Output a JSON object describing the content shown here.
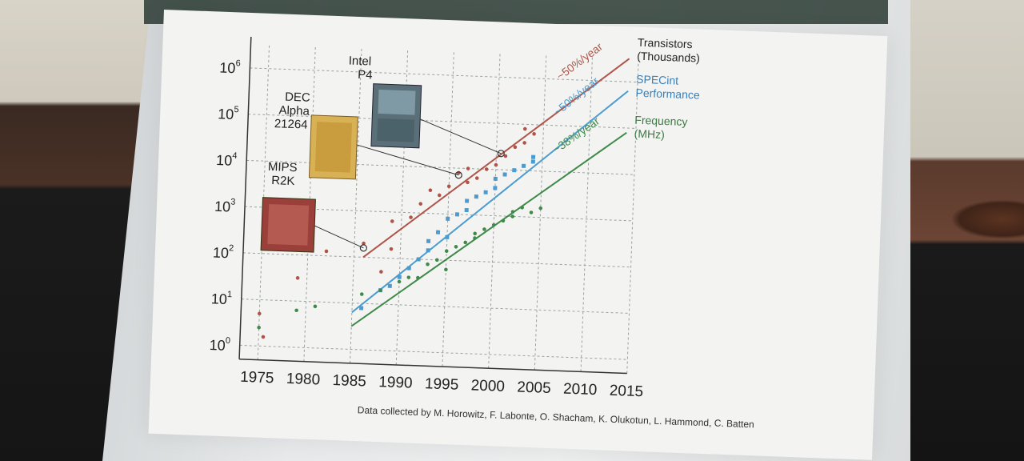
{
  "annotations": {
    "trans_rate": "~50%/year",
    "spec_rate": "~50%/year",
    "freq_rate": "~38%/year"
  },
  "legend": {
    "transistors": [
      "Transistors",
      "(Thousands)"
    ],
    "spec": [
      "SPECint",
      "Performance"
    ],
    "freq": [
      "Frequency",
      "(MHz)"
    ]
  },
  "chips": {
    "intel": [
      "Intel",
      "P4"
    ],
    "dec": [
      "DEC",
      "Alpha",
      "21264"
    ],
    "mips": [
      "MIPS",
      "R2K"
    ]
  },
  "credit": "Data collected by M. Horowitz, F. Labonte, O. Shacham, K. Olukotun, L. Hammond, C. Batten",
  "colors": {
    "transistors": "#b0544a",
    "spec": "#4a9bd0",
    "freq": "#3f8a4a",
    "grid": "#9aa0a0"
  },
  "chart_data": {
    "type": "scatter",
    "x_ticks": [
      "1975",
      "1980",
      "1985",
      "1990",
      "1995",
      "2000",
      "2005",
      "2010",
      "2015"
    ],
    "y_ticks": [
      "10^0",
      "10^1",
      "10^2",
      "10^3",
      "10^4",
      "10^5",
      "10^6"
    ],
    "x_range": [
      1973,
      2015
    ],
    "y_range": [
      -0.3,
      6.5
    ],
    "y_scale": "log10",
    "series": [
      {
        "name": "Transistors (Thousands)",
        "color": "#b0544a",
        "points": [
          [
            1975,
            0.7
          ],
          [
            1975.5,
            0.2
          ],
          [
            1979,
            1.5
          ],
          [
            1982,
            2.1
          ],
          [
            1986,
            2.3
          ],
          [
            1988,
            1.7
          ],
          [
            1989,
            2.2
          ],
          [
            1989,
            2.8
          ],
          [
            1991,
            2.9
          ],
          [
            1992,
            3.2
          ],
          [
            1993,
            3.5
          ],
          [
            1994,
            3.4
          ],
          [
            1995,
            3.6
          ],
          [
            1996,
            3.9
          ],
          [
            1997,
            3.7
          ],
          [
            1997,
            4.0
          ],
          [
            1998,
            3.8
          ],
          [
            1999,
            4.0
          ],
          [
            2000,
            4.1
          ],
          [
            2001,
            4.3
          ],
          [
            2002,
            4.5
          ],
          [
            2003,
            4.6
          ],
          [
            2003,
            4.9
          ],
          [
            2004,
            4.8
          ]
        ],
        "fit": {
          "label": "~50%/year",
          "from": [
            1986,
            2.0
          ],
          "to": [
            2014,
            6.5
          ]
        }
      },
      {
        "name": "SPECint Performance",
        "color": "#4a9bd0",
        "points": [
          [
            1986,
            0.9
          ],
          [
            1988,
            1.3
          ],
          [
            1989,
            1.4
          ],
          [
            1990,
            1.6
          ],
          [
            1991,
            1.8
          ],
          [
            1992,
            2.0
          ],
          [
            1993,
            2.2
          ],
          [
            1993,
            2.4
          ],
          [
            1994,
            2.6
          ],
          [
            1995,
            2.5
          ],
          [
            1995,
            2.9
          ],
          [
            1996,
            3.0
          ],
          [
            1997,
            3.1
          ],
          [
            1997,
            3.3
          ],
          [
            1998,
            3.4
          ],
          [
            1999,
            3.5
          ],
          [
            2000,
            3.6
          ],
          [
            2000,
            3.8
          ],
          [
            2001,
            3.9
          ],
          [
            2002,
            4.0
          ],
          [
            2003,
            4.1
          ],
          [
            2004,
            4.2
          ],
          [
            2004,
            4.3
          ]
        ],
        "fit": {
          "label": "~50%/year",
          "from": [
            1985,
            0.8
          ],
          "to": [
            2014,
            5.8
          ]
        }
      },
      {
        "name": "Frequency (MHz)",
        "color": "#3f8a4a",
        "points": [
          [
            1975,
            0.4
          ],
          [
            1979,
            0.8
          ],
          [
            1981,
            0.9
          ],
          [
            1986,
            1.2
          ],
          [
            1988,
            1.3
          ],
          [
            1990,
            1.5
          ],
          [
            1991,
            1.6
          ],
          [
            1992,
            1.6
          ],
          [
            1993,
            1.9
          ],
          [
            1994,
            2.0
          ],
          [
            1995,
            2.2
          ],
          [
            1995,
            1.8
          ],
          [
            1996,
            2.3
          ],
          [
            1997,
            2.4
          ],
          [
            1998,
            2.5
          ],
          [
            1998,
            2.6
          ],
          [
            1999,
            2.7
          ],
          [
            2000,
            2.8
          ],
          [
            2001,
            2.9
          ],
          [
            2002,
            3.0
          ],
          [
            2002,
            3.1
          ],
          [
            2003,
            3.2
          ],
          [
            2004,
            3.1
          ],
          [
            2005,
            3.2
          ]
        ],
        "fit": {
          "label": "~38%/year",
          "from": [
            1985,
            0.5
          ],
          "to": [
            2014,
            4.9
          ]
        }
      }
    ],
    "chip_markers": [
      {
        "name": "MIPS R2K",
        "year": 1986,
        "log": 2.2
      },
      {
        "name": "DEC Alpha 21264",
        "year": 1996,
        "log": 3.85
      },
      {
        "name": "Intel P4",
        "year": 2000.5,
        "log": 4.35
      }
    ]
  }
}
